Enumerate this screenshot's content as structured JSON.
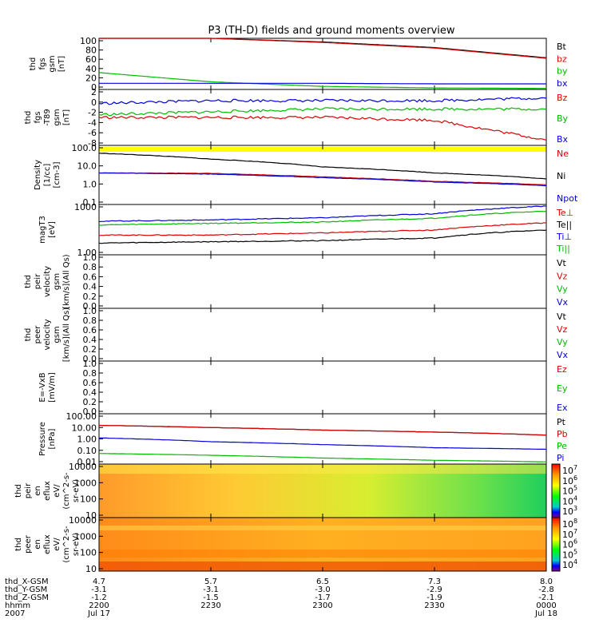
{
  "title": "P3 (TH-D) fields and ground moments overview",
  "colorbar_ticks": [
    "10^7",
    "10^6",
    "10^5",
    "10^4",
    "10^3"
  ],
  "colorbar2_ticks": [
    "10^8",
    "10^7",
    "10^6",
    "10^5",
    "10^4"
  ],
  "panels": [
    {
      "id": "fgs",
      "ylabel": [
        "thd",
        "fgs",
        "gsm",
        "[nT]"
      ],
      "ticks": [
        "100",
        "80",
        "60",
        "40",
        "20",
        "0"
      ],
      "legend": [
        {
          "label": "Bt",
          "color": "#000000"
        },
        {
          "label": "bz",
          "color": "#dd0000"
        },
        {
          "label": "by",
          "color": "#00bb00"
        },
        {
          "label": "bx",
          "color": "#0000dd"
        }
      ]
    },
    {
      "id": "fgs-t89",
      "ylabel": [
        "thd",
        "fgs",
        "-T89",
        "gsm",
        "[nT]"
      ],
      "ticks": [
        "2",
        "0",
        "-2",
        "-4",
        "-6",
        "-8"
      ],
      "legend": [
        {
          "label": "Bz",
          "color": "#dd0000"
        },
        {
          "label": "By",
          "color": "#00bb00"
        },
        {
          "label": "Bx",
          "color": "#0000dd"
        }
      ]
    },
    {
      "id": "density",
      "ylabel": [
        "Density",
        "[1/cc]",
        "[cm-3]"
      ],
      "ticks": [
        "100.0",
        "10.0",
        "1.0",
        "0.1"
      ],
      "legend": [
        {
          "label": "Ne",
          "color": "#dd0000"
        },
        {
          "label": "Ni",
          "color": "#000000"
        },
        {
          "label": "Npot",
          "color": "#0000dd"
        }
      ]
    },
    {
      "id": "temperature",
      "ylabel": [
        "magT3",
        "[eV]"
      ],
      "ticks": [
        "1000",
        "1.00"
      ],
      "legend": [
        {
          "label": "Te⊥",
          "color": "#dd0000"
        },
        {
          "label": "Te||",
          "color": "#000000"
        },
        {
          "label": "Ti⊥",
          "color": "#0000dd"
        },
        {
          "label": "Ti||",
          "color": "#00bb00"
        }
      ]
    },
    {
      "id": "peir-velocity",
      "ylabel": [
        "thd",
        "peir",
        "velocity",
        "gsm",
        "[km/s](All Qs)"
      ],
      "ticks": [
        "1.0",
        "0.8",
        "0.6",
        "0.4",
        "0.2",
        "0.0"
      ],
      "legend": [
        {
          "label": "Vt",
          "color": "#000000"
        },
        {
          "label": "Vz",
          "color": "#dd0000"
        },
        {
          "label": "Vy",
          "color": "#00bb00"
        },
        {
          "label": "Vx",
          "color": "#0000dd"
        }
      ]
    },
    {
      "id": "peer-velocity",
      "ylabel": [
        "thd",
        "peer",
        "velocity",
        "gsm",
        "[km/s](All Qs)"
      ],
      "ticks": [
        "1.0",
        "0.8",
        "0.6",
        "0.4",
        "0.2",
        "0.0"
      ],
      "legend": [
        {
          "label": "Vt",
          "color": "#000000"
        },
        {
          "label": "Vz",
          "color": "#dd0000"
        },
        {
          "label": "Vy",
          "color": "#00bb00"
        },
        {
          "label": "Vx",
          "color": "#0000dd"
        }
      ]
    },
    {
      "id": "efield",
      "ylabel": [
        "E=-VxB",
        "[mV/m]"
      ],
      "ticks": [
        "1.0",
        "0.8",
        "0.6",
        "0.4",
        "0.2",
        "0.0"
      ],
      "legend": [
        {
          "label": "Ez",
          "color": "#dd0000"
        },
        {
          "label": "Ey",
          "color": "#00bb00"
        },
        {
          "label": "Ex",
          "color": "#0000dd"
        }
      ]
    },
    {
      "id": "pressure",
      "ylabel": [
        "Pressure",
        "[nPa]"
      ],
      "ticks": [
        "100.00",
        "10.00",
        "1.00",
        "0.10",
        "0.01"
      ],
      "legend": [
        {
          "label": "Pt",
          "color": "#000000"
        },
        {
          "label": "Pb",
          "color": "#dd0000"
        },
        {
          "label": "Pe",
          "color": "#00bb00"
        },
        {
          "label": "Pi",
          "color": "#0000dd"
        }
      ]
    },
    {
      "id": "peir-eflux",
      "ylabel": [
        "thd",
        "peir",
        "en",
        "eflux",
        "eV/",
        "(cm^2-s-",
        "sr-eV)"
      ],
      "ticks": [
        "10000",
        "1000",
        "100",
        "10"
      ],
      "legend": []
    },
    {
      "id": "peer-eflux",
      "ylabel": [
        "thd",
        "peer",
        "en",
        "eflux",
        "eV/",
        "(cm^2-s-",
        "sr-eV)"
      ],
      "ticks": [
        "10000",
        "1000",
        "100",
        "10"
      ],
      "legend": []
    }
  ],
  "xaxis": {
    "row_labels": [
      "thd_X-GSM",
      "thd_Y-GSM",
      "thd_Z-GSM",
      "hhmm",
      "2007"
    ],
    "columns": [
      [
        "4.7",
        "-3.1",
        "-1.2",
        "2200",
        "Jul 17"
      ],
      [
        "5.7",
        "-3.1",
        "-1.5",
        "2230",
        ""
      ],
      [
        "6.5",
        "-3.0",
        "-1.7",
        "2300",
        ""
      ],
      [
        "7.3",
        "-2.9",
        "-1.9",
        "2330",
        ""
      ],
      [
        "8.0",
        "-2.8",
        "-2.1",
        "0000",
        "Jul 18"
      ]
    ]
  },
  "chart_data": {
    "type": "line",
    "title": "P3 (TH-D) fields and ground moments overview",
    "x": [
      "2200",
      "2230",
      "2300",
      "2330",
      "0000"
    ],
    "panels": [
      {
        "name": "thd_fgs_gsm",
        "unit": "nT",
        "ylim": [
          0,
          100
        ],
        "series": [
          {
            "name": "Bt",
            "values": [
              100,
              100,
              93,
              82,
              62
            ]
          },
          {
            "name": "bz",
            "values": [
              100,
              100,
              92,
              81,
              61
            ]
          },
          {
            "name": "by",
            "values": [
              33,
              15,
              6,
              3,
              2
            ]
          },
          {
            "name": "bx",
            "values": [
              12,
              12,
              12,
              11,
              11
            ]
          }
        ]
      },
      {
        "name": "thd_fgs_gsm-T89",
        "unit": "nT",
        "ylim": [
          -8,
          2
        ],
        "series": [
          {
            "name": "Bz",
            "values": [
              -3,
              -3,
              -3,
              -3.5,
              -7
            ]
          },
          {
            "name": "By",
            "values": [
              -2.5,
              -2,
              -1.5,
              -1.5,
              -1.5
            ]
          },
          {
            "name": "Bx",
            "values": [
              -0.5,
              0,
              0,
              0,
              0.5
            ]
          }
        ]
      },
      {
        "name": "Density",
        "unit": "1/cc",
        "ylim": [
          0.1,
          100
        ],
        "scale": "log",
        "series": [
          {
            "name": "Ne",
            "values": [
              4,
              3.8,
              2.5,
              1.5,
              1
            ]
          },
          {
            "name": "Ni",
            "values": [
              40,
              20,
              8,
              4,
              2
            ]
          },
          {
            "name": "Npot",
            "values": [
              4,
              3.5,
              2.3,
              1.4,
              0.9
            ]
          }
        ]
      },
      {
        "name": "magT3",
        "unit": "eV",
        "ylim": [
          1,
          1000
        ],
        "scale": "log",
        "series": [
          {
            "name": "Ti⊥",
            "values": [
              100,
              120,
              160,
              280,
              800
            ]
          },
          {
            "name": "Ti||",
            "values": [
              60,
              75,
              90,
              150,
              400
            ]
          },
          {
            "name": "Te⊥",
            "values": [
              15,
              15,
              20,
              30,
              80
            ]
          },
          {
            "name": "Te||",
            "values": [
              5,
              6,
              7,
              10,
              30
            ]
          }
        ]
      },
      {
        "name": "thd_peir_velocity_gsm",
        "unit": "km/s",
        "ylim": [
          0,
          1
        ],
        "series": []
      },
      {
        "name": "thd_peer_velocity_gsm",
        "unit": "km/s",
        "ylim": [
          0,
          1
        ],
        "series": []
      },
      {
        "name": "E=-VxB",
        "unit": "mV/m",
        "ylim": [
          0,
          1
        ],
        "series": []
      },
      {
        "name": "Pressure",
        "unit": "nPa",
        "ylim": [
          0.01,
          100
        ],
        "scale": "log",
        "series": [
          {
            "name": "Pt",
            "values": [
              12,
              8,
              5,
              3.5,
              2
            ]
          },
          {
            "name": "Pb",
            "values": [
              12,
              8,
              5,
              3.5,
              2
            ]
          },
          {
            "name": "Pe",
            "values": [
              0.07,
              0.05,
              0.03,
              0.02,
              0.015
            ]
          },
          {
            "name": "Pi",
            "values": [
              1.2,
              0.6,
              0.35,
              0.2,
              0.15
            ]
          }
        ]
      }
    ]
  }
}
